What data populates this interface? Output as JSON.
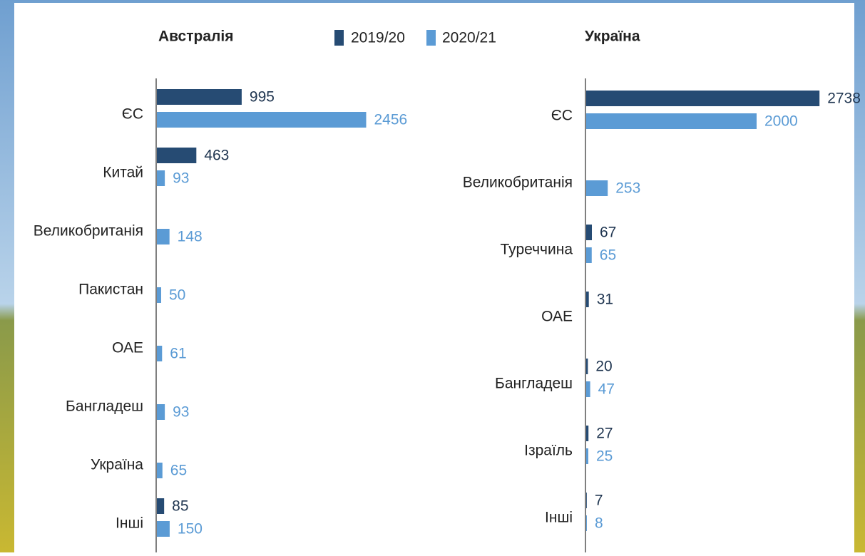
{
  "chart_data": [
    {
      "type": "barh",
      "title": "Австралія",
      "categories": [
        "ЄС",
        "Китай",
        "Великобританія",
        "Пакистан",
        "ОАЕ",
        "Бангладеш",
        "Україна",
        "Інші"
      ],
      "series": [
        {
          "name": "2019/20",
          "color": "#264b73",
          "values": [
            995,
            463,
            null,
            null,
            null,
            null,
            null,
            85
          ]
        },
        {
          "name": "2020/21",
          "color": "#5b9bd5",
          "values": [
            2456,
            93,
            148,
            50,
            61,
            93,
            65,
            150
          ]
        }
      ]
    },
    {
      "type": "barh",
      "title": "Україна",
      "categories": [
        "ЄС",
        "Великобританія",
        "Туреччина",
        "ОАЕ",
        "Бангладеш",
        "Ізраїль",
        "Інші"
      ],
      "series": [
        {
          "values": [
            2738,
            null,
            67,
            31,
            20,
            27,
            7
          ]
        },
        {
          "values": [
            2000,
            253,
            65,
            null,
            47,
            25,
            8
          ]
        }
      ]
    }
  ]
}
